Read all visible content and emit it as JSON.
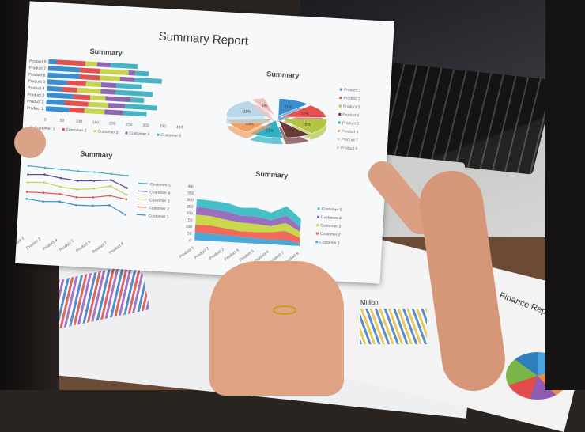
{
  "report_title": "Summary Report",
  "finance_title": "Finance Report",
  "million_label": "Million",
  "bar_chart": {
    "title": "Summary",
    "categories": [
      "Product 1",
      "Product 2",
      "Product 3",
      "Product 4",
      "Product 5",
      "Product 6",
      "Product 7",
      "Product 8"
    ],
    "x_ticks": [
      "0",
      "50",
      "100",
      "150",
      "200",
      "250",
      "300",
      "350",
      "400"
    ],
    "series": [
      {
        "name": "Customer 1",
        "color": "#3a8ed0",
        "values": [
          70,
          55,
          80,
          45,
          60,
          95,
          95,
          25
        ]
      },
      {
        "name": "Customer 2",
        "color": "#e2534f",
        "values": [
          45,
          70,
          50,
          45,
          55,
          60,
          60,
          85
        ]
      },
      {
        "name": "Customer 3",
        "color": "#c7d44e",
        "values": [
          60,
          60,
          45,
          70,
          45,
          60,
          85,
          35
        ]
      },
      {
        "name": "Customer 4",
        "color": "#8e67b4",
        "values": [
          55,
          50,
          75,
          45,
          45,
          45,
          20,
          40
        ]
      },
      {
        "name": "Customer 5",
        "color": "#45b4c6",
        "values": [
          70,
          95,
          40,
          110,
          75,
          80,
          40,
          80
        ]
      }
    ]
  },
  "pie_chart": {
    "title": "Summary",
    "legend": [
      "Product 1",
      "Product 2",
      "Product 3",
      "Product 4",
      "Product 5",
      "Product 6",
      "Product 7",
      "Product 8"
    ],
    "colors": [
      "#3a8ed0",
      "#e2534f",
      "#b4c440",
      "#6b3a3a",
      "#30b0c4",
      "#f0a060",
      "#b8d8ea",
      "#f0c0c0"
    ],
    "labels": [
      "11%",
      "12%",
      "15%",
      "9%",
      "12%",
      "13%",
      "19%",
      "5%"
    ]
  },
  "line_chart": {
    "title": "Summary",
    "categories": [
      "Product 2",
      "Product 3",
      "Product 4",
      "Product 5",
      "Product 6",
      "Product 7",
      "Product 8"
    ],
    "series": [
      {
        "name": "Customer 5",
        "color": "#45b4c6",
        "values": [
          350,
          345,
          340,
          335,
          335,
          330,
          325
        ]
      },
      {
        "name": "Customer 4",
        "color": "#5a4a8a",
        "values": [
          300,
          305,
          290,
          280,
          285,
          295,
          255
        ]
      },
      {
        "name": "Customer 3",
        "color": "#c7d44e",
        "values": [
          255,
          260,
          240,
          230,
          240,
          260,
          215
        ]
      },
      {
        "name": "Customer 2",
        "color": "#e2534f",
        "values": [
          200,
          200,
          198,
          185,
          190,
          205,
          190
        ]
      },
      {
        "name": "Customer 1",
        "color": "#3a8ed0",
        "values": [
          160,
          150,
          155,
          140,
          142,
          150,
          100
        ]
      }
    ]
  },
  "area_chart": {
    "title": "Summary",
    "y_ticks": [
      "0",
      "50",
      "100",
      "150",
      "200",
      "250",
      "300",
      "350",
      "400"
    ],
    "categories": [
      "Product 1",
      "Product 2",
      "Product 3",
      "Product 4",
      "Product 5",
      "Product 6",
      "Product 7",
      "Product 8"
    ],
    "series": [
      {
        "name": "Customer 1",
        "color": "#4aa8d8",
        "values": [
          60,
          55,
          50,
          45,
          40,
          35,
          40,
          20
        ]
      },
      {
        "name": "Customer 2",
        "color": "#ef6a5a",
        "values": [
          55,
          60,
          50,
          40,
          45,
          55,
          65,
          40
        ]
      },
      {
        "name": "Customer 3",
        "color": "#c9d84a",
        "values": [
          75,
          70,
          65,
          65,
          60,
          45,
          60,
          45
        ]
      },
      {
        "name": "Customer 4",
        "color": "#9b6fc0",
        "values": [
          60,
          55,
          60,
          50,
          55,
          45,
          55,
          35
        ]
      },
      {
        "name": "Customer 5",
        "color": "#45c0c8",
        "values": [
          55,
          60,
          65,
          60,
          65,
          55,
          70,
          60
        ]
      }
    ]
  }
}
